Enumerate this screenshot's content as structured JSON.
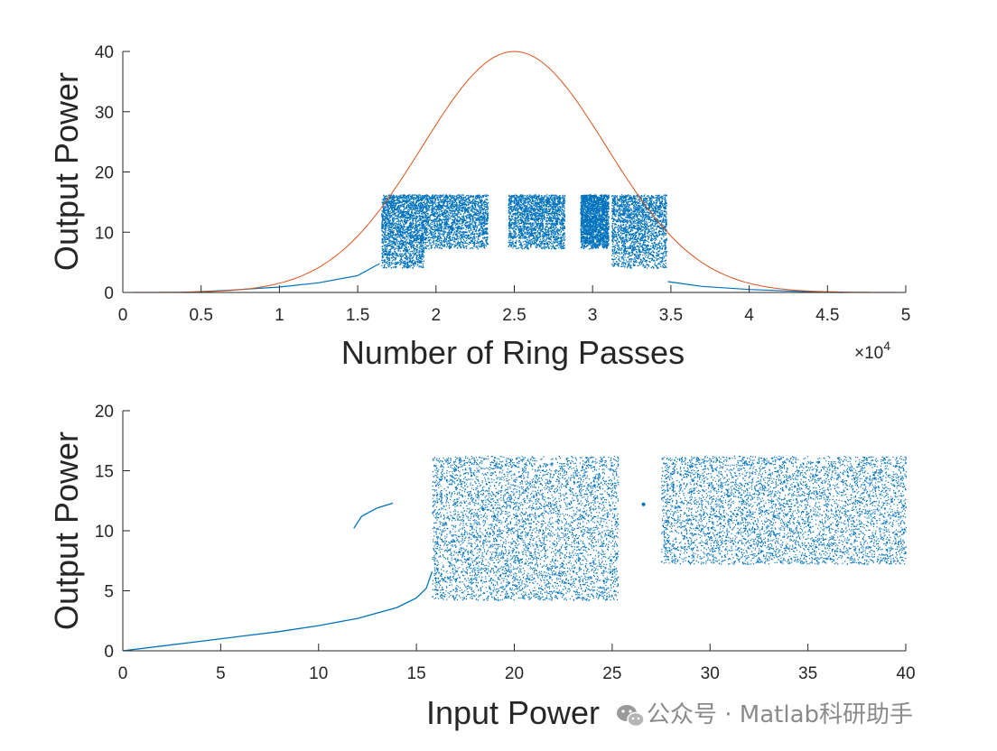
{
  "colors": {
    "envelope": "#D95319",
    "scatter": "#0072BD",
    "axis": "#262626"
  },
  "watermark": {
    "text": "公众号 · Matlab科研助手",
    "icon": "wechat-icon"
  },
  "chart_data": [
    {
      "type": "line",
      "xlabel": "Number of Ring Passes",
      "ylabel": "Output Power",
      "x_exponent_label": "×10",
      "x_exponent_power": "4",
      "xlim": [
        0,
        50000
      ],
      "ylim": [
        0,
        40
      ],
      "xticks": [
        0,
        5000,
        10000,
        15000,
        20000,
        25000,
        30000,
        35000,
        40000,
        45000,
        50000
      ],
      "xtick_labels": [
        "0",
        "0.5",
        "1",
        "1.5",
        "2",
        "2.5",
        "3",
        "3.5",
        "4",
        "4.5",
        "5"
      ],
      "yticks": [
        0,
        10,
        20,
        30,
        40
      ],
      "ytick_labels": [
        "0",
        "10",
        "20",
        "30",
        "40"
      ],
      "grid": false,
      "series": [
        {
          "role": "input envelope",
          "color": "#D95319",
          "x": [
            0,
            2500,
            5000,
            7500,
            10000,
            12500,
            15000,
            17500,
            20000,
            22500,
            25000,
            27500,
            30000,
            32500,
            35000,
            37500,
            40000,
            42500,
            45000,
            47500,
            50000
          ],
          "y": [
            0.0,
            0.0,
            0.0,
            0.3,
            1.2,
            3.6,
            8.4,
            16.0,
            25.2,
            34.4,
            40.0,
            34.4,
            25.2,
            16.0,
            8.4,
            3.6,
            1.2,
            0.3,
            0.0,
            0.0,
            0.0
          ]
        },
        {
          "role": "output scatter",
          "color": "#0072BD",
          "bands": [
            {
              "x": [
                16500,
                19200
              ],
              "y": [
                4.0,
                16.2
              ]
            },
            {
              "x": [
                19200,
                23300
              ],
              "y": [
                7.2,
                16.2
              ]
            },
            {
              "x": [
                24600,
                28200
              ],
              "y": [
                7.2,
                16.2
              ]
            },
            {
              "x": [
                29200,
                31000
              ],
              "y": [
                7.2,
                16.2
              ]
            },
            {
              "x": [
                31200,
                34700
              ],
              "y": [
                4.0,
                16.2
              ]
            }
          ],
          "lower_branch": {
            "x": [
              4000,
              7000,
              10000,
              12500,
              15000,
              16400,
              34800,
              37000,
              40000,
              43000,
              46000
            ],
            "y": [
              0.0,
              0.4,
              0.9,
              1.6,
              2.8,
              4.8,
              1.8,
              1.0,
              0.5,
              0.2,
              0.0
            ]
          }
        }
      ]
    },
    {
      "type": "scatter",
      "xlabel": "Input Power",
      "ylabel": "Output Power",
      "xlim": [
        0,
        40
      ],
      "ylim": [
        0,
        20
      ],
      "xticks": [
        0,
        5,
        10,
        15,
        20,
        25,
        30,
        35,
        40
      ],
      "xtick_labels": [
        "0",
        "5",
        "10",
        "15",
        "20",
        "25",
        "30",
        "35",
        "40"
      ],
      "yticks": [
        0,
        5,
        10,
        15,
        20
      ],
      "ytick_labels": [
        "0",
        "5",
        "10",
        "15",
        "20"
      ],
      "grid": false,
      "series": [
        {
          "role": "bifurcation diagram",
          "color": "#0072BD",
          "lower_branch": {
            "x": [
              0,
              2,
              4,
              6,
              8,
              10,
              12,
              14,
              15,
              15.5,
              15.8
            ],
            "y": [
              0.0,
              0.4,
              0.8,
              1.2,
              1.6,
              2.1,
              2.7,
              3.6,
              4.4,
              5.2,
              6.6
            ]
          },
          "upper_branch": {
            "x": [
              11.8,
              12.2,
              13.0,
              13.8
            ],
            "y": [
              10.2,
              11.2,
              11.9,
              12.3
            ]
          },
          "chaotic_regions": [
            {
              "x": [
                15.8,
                25.3
              ],
              "y": [
                4.2,
                16.2
              ]
            },
            {
              "x": [
                27.5,
                40.0
              ],
              "y": [
                7.2,
                16.2
              ]
            }
          ],
          "merge_point": {
            "x": 26.6,
            "y": 12.2
          }
        }
      ]
    }
  ]
}
